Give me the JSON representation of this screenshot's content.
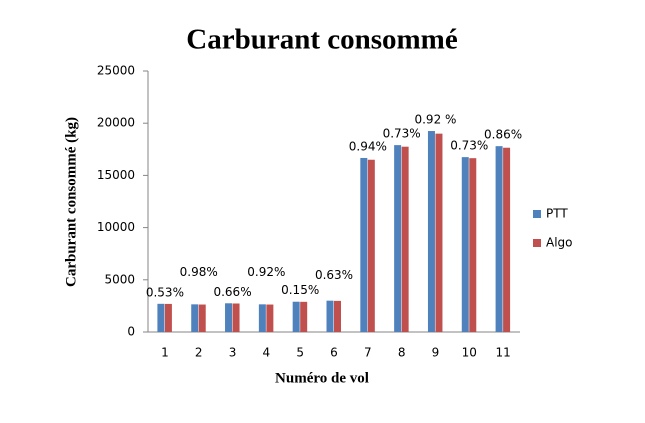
{
  "chart_data": {
    "type": "bar",
    "title": "Carburant consommé",
    "x_label": "Numéro de vol",
    "y_label": "Carburant consommé (kg)",
    "categories": [
      "1",
      "2",
      "3",
      "4",
      "5",
      "6",
      "7",
      "8",
      "9",
      "10",
      "11"
    ],
    "series": [
      {
        "name": "PTT",
        "color": "#4f81bd",
        "values": [
          2700,
          2650,
          2750,
          2650,
          2900,
          3000,
          16670,
          17900,
          19250,
          16750,
          17800
        ]
      },
      {
        "name": "Algo",
        "color": "#c0504d",
        "values": [
          2690,
          2630,
          2730,
          2630,
          2890,
          2980,
          16500,
          17750,
          19000,
          16650,
          17650
        ]
      }
    ],
    "annotations": [
      "0.53%",
      "0.98%",
      "0.66%",
      "0.92%",
      "0.15%",
      "0.63%",
      "0.94%",
      "0.73%",
      "0.92 %",
      "0.73%",
      "0.86%"
    ],
    "ylim": [
      0,
      25000
    ],
    "yticks": [
      0,
      5000,
      10000,
      15000,
      20000,
      25000
    ],
    "grid": false,
    "legend": "right"
  }
}
